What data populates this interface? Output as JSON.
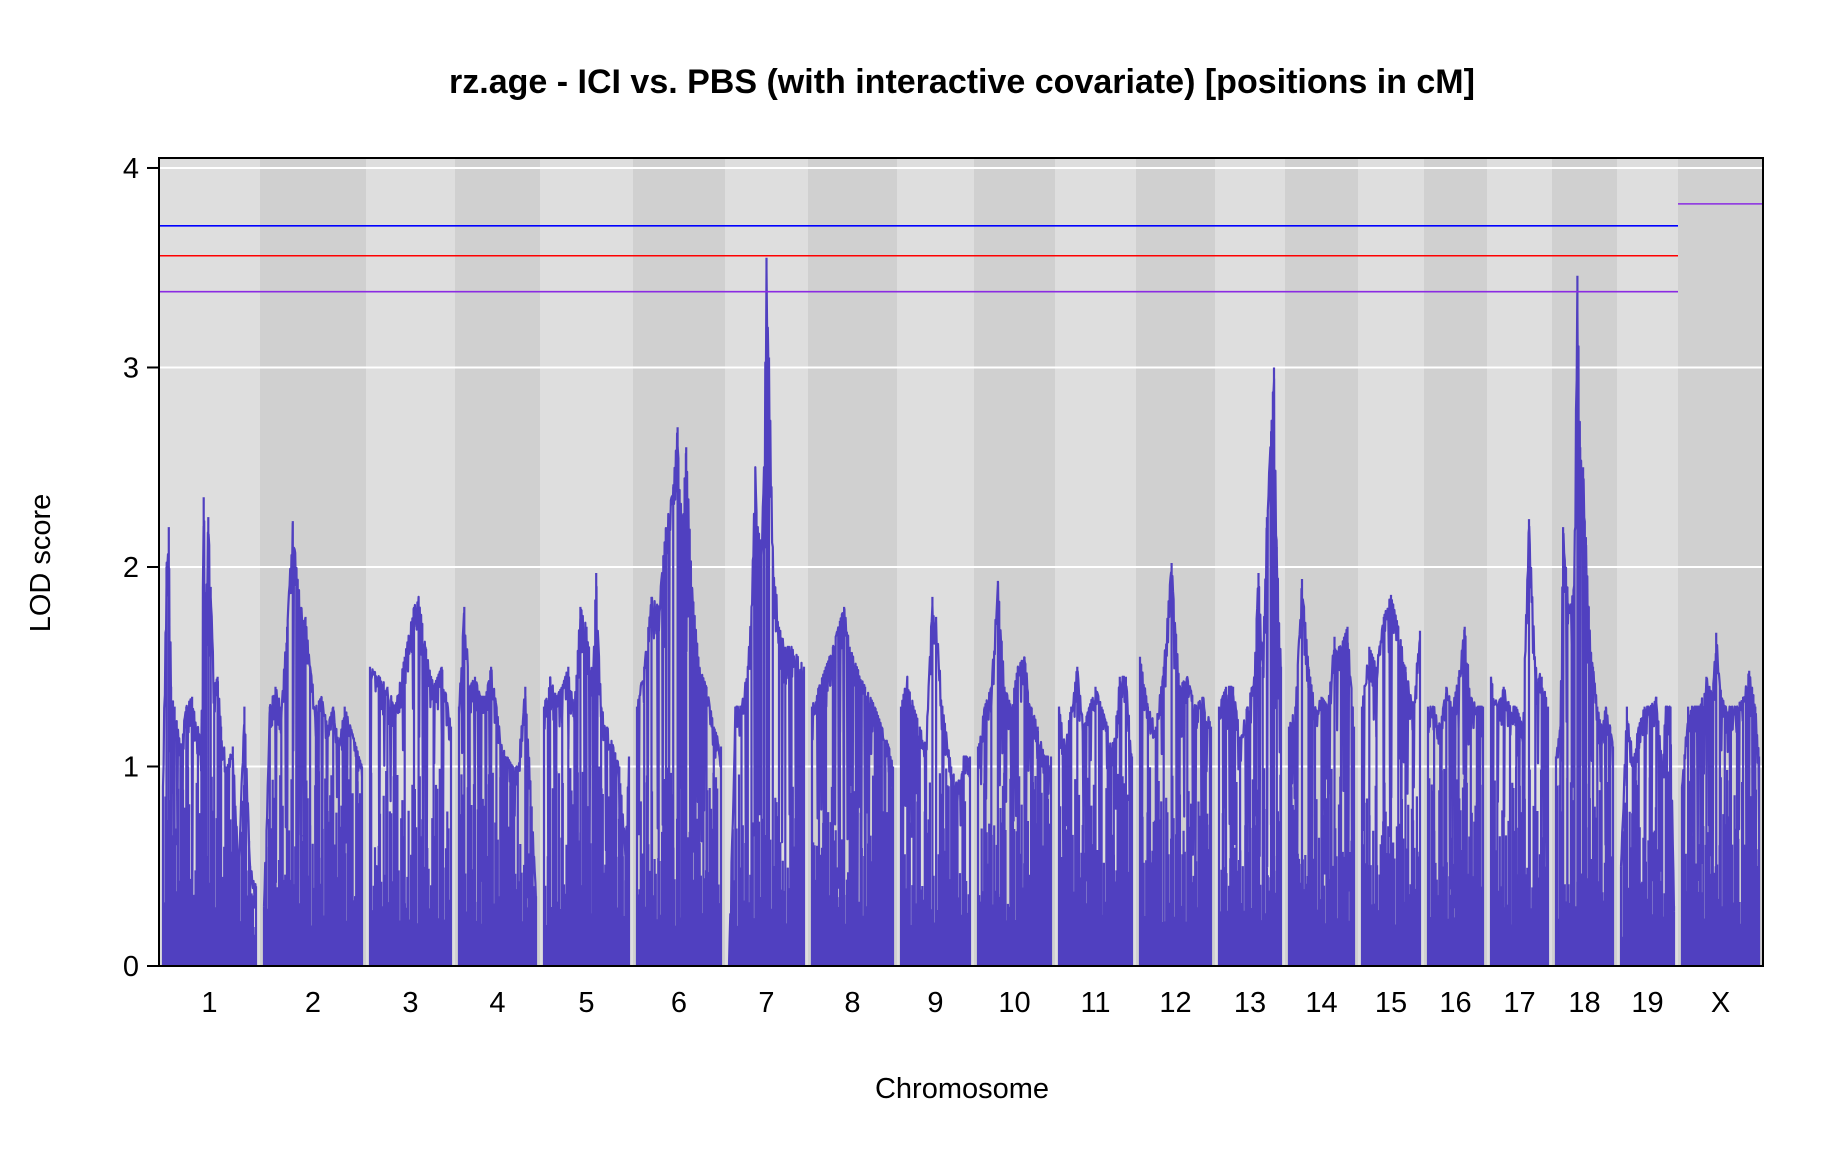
{
  "chart_data": {
    "type": "line",
    "title": "rz.age - ICI vs. PBS (with interactive covariate) [positions in cM]",
    "xlabel": "Chromosome",
    "ylabel": "LOD score",
    "ylim": [
      0,
      4.05
    ],
    "yticks": [
      0,
      1,
      2,
      3,
      4
    ],
    "grid": true,
    "line_color": "#5040c0",
    "band_colors": [
      "#dedede",
      "#d0d0d0"
    ],
    "chromosomes": [
      {
        "name": "1",
        "peaks": [
          [
            0,
            0.9
          ],
          [
            3,
            2.0
          ],
          [
            5,
            2.2
          ],
          [
            7,
            1.4
          ],
          [
            10,
            1.3
          ],
          [
            15,
            1.1
          ],
          [
            20,
            1.3
          ],
          [
            25,
            1.35
          ],
          [
            30,
            1.2
          ],
          [
            33,
            1.1
          ],
          [
            35,
            2.35
          ],
          [
            37,
            1.8
          ],
          [
            39,
            2.25
          ],
          [
            41,
            1.9
          ],
          [
            44,
            1.4
          ],
          [
            47,
            1.45
          ],
          [
            50,
            1.2
          ],
          [
            55,
            1.0
          ],
          [
            60,
            1.1
          ],
          [
            65,
            0.5
          ],
          [
            70,
            1.3
          ],
          [
            75,
            0.5
          ],
          [
            80,
            0.4
          ]
        ]
      },
      {
        "name": "2",
        "peaks": [
          [
            0,
            0.3
          ],
          [
            5,
            1.3
          ],
          [
            10,
            1.4
          ],
          [
            15,
            1.3
          ],
          [
            20,
            1.7
          ],
          [
            25,
            2.23
          ],
          [
            28,
            2.0
          ],
          [
            32,
            1.8
          ],
          [
            36,
            1.75
          ],
          [
            40,
            1.5
          ],
          [
            45,
            1.3
          ],
          [
            50,
            1.35
          ],
          [
            55,
            1.2
          ],
          [
            60,
            1.3
          ],
          [
            65,
            1.1
          ],
          [
            70,
            1.3
          ],
          [
            75,
            1.2
          ],
          [
            80,
            1.1
          ],
          [
            85,
            1.0
          ]
        ]
      },
      {
        "name": "3",
        "peaks": [
          [
            0,
            1.5
          ],
          [
            8,
            1.45
          ],
          [
            15,
            1.4
          ],
          [
            22,
            1.3
          ],
          [
            30,
            1.55
          ],
          [
            38,
            1.8
          ],
          [
            42,
            1.85
          ],
          [
            48,
            1.6
          ],
          [
            55,
            1.4
          ],
          [
            62,
            1.5
          ],
          [
            70,
            1.2
          ]
        ]
      },
      {
        "name": "4",
        "peaks": [
          [
            0,
            1.3
          ],
          [
            5,
            1.8
          ],
          [
            10,
            1.4
          ],
          [
            15,
            1.45
          ],
          [
            20,
            1.35
          ],
          [
            25,
            1.35
          ],
          [
            30,
            1.5
          ],
          [
            35,
            1.3
          ],
          [
            40,
            1.1
          ],
          [
            45,
            1.05
          ],
          [
            50,
            1.0
          ],
          [
            55,
            1.0
          ],
          [
            62,
            1.4
          ],
          [
            68,
            0.8
          ],
          [
            72,
            0.35
          ]
        ]
      },
      {
        "name": "5",
        "peaks": [
          [
            0,
            1.3
          ],
          [
            5,
            1.45
          ],
          [
            10,
            1.35
          ],
          [
            15,
            1.4
          ],
          [
            20,
            1.5
          ],
          [
            25,
            1.3
          ],
          [
            30,
            1.8
          ],
          [
            35,
            1.7
          ],
          [
            40,
            1.45
          ],
          [
            43,
            1.97
          ],
          [
            47,
            1.3
          ],
          [
            52,
            1.2
          ],
          [
            57,
            1.1
          ],
          [
            62,
            1.0
          ],
          [
            67,
            0.6
          ],
          [
            70,
            1.05
          ]
        ]
      },
      {
        "name": "6",
        "peaks": [
          [
            0,
            1.3
          ],
          [
            5,
            1.5
          ],
          [
            10,
            1.85
          ],
          [
            15,
            1.8
          ],
          [
            20,
            2.2
          ],
          [
            25,
            2.4
          ],
          [
            28,
            2.7
          ],
          [
            31,
            2.2
          ],
          [
            34,
            2.6
          ],
          [
            38,
            1.9
          ],
          [
            43,
            1.5
          ],
          [
            48,
            1.4
          ],
          [
            53,
            1.2
          ],
          [
            58,
            1.1
          ]
        ]
      },
      {
        "name": "7",
        "peaks": [
          [
            0,
            0.0
          ],
          [
            5,
            1.3
          ],
          [
            10,
            1.3
          ],
          [
            15,
            1.5
          ],
          [
            18,
            1.8
          ],
          [
            21,
            2.5
          ],
          [
            23,
            2.2
          ],
          [
            26,
            2.1
          ],
          [
            28,
            2.5
          ],
          [
            30,
            3.55
          ],
          [
            31,
            3.2
          ],
          [
            32,
            3.05
          ],
          [
            35,
            2.1
          ],
          [
            40,
            1.7
          ],
          [
            45,
            1.6
          ],
          [
            50,
            1.6
          ],
          [
            55,
            1.55
          ],
          [
            60,
            1.5
          ]
        ]
      },
      {
        "name": "8",
        "peaks": [
          [
            0,
            1.3
          ],
          [
            5,
            1.4
          ],
          [
            10,
            1.5
          ],
          [
            15,
            1.6
          ],
          [
            20,
            1.73
          ],
          [
            23,
            1.8
          ],
          [
            27,
            1.6
          ],
          [
            32,
            1.5
          ],
          [
            38,
            1.4
          ],
          [
            45,
            1.3
          ],
          [
            50,
            1.2
          ],
          [
            55,
            1.1
          ],
          [
            58,
            1.0
          ]
        ]
      },
      {
        "name": "9",
        "peaks": [
          [
            0,
            1.3
          ],
          [
            5,
            1.45
          ],
          [
            10,
            1.3
          ],
          [
            15,
            1.2
          ],
          [
            20,
            1.1
          ],
          [
            25,
            1.85
          ],
          [
            28,
            1.75
          ],
          [
            33,
            1.3
          ],
          [
            40,
            1.0
          ],
          [
            45,
            0.9
          ],
          [
            50,
            1.05
          ],
          [
            55,
            1.05
          ]
        ]
      },
      {
        "name": "10",
        "peaks": [
          [
            0,
            1.1
          ],
          [
            5,
            1.3
          ],
          [
            10,
            1.4
          ],
          [
            15,
            1.93
          ],
          [
            20,
            1.4
          ],
          [
            25,
            1.3
          ],
          [
            30,
            1.5
          ],
          [
            35,
            1.55
          ],
          [
            40,
            1.3
          ],
          [
            45,
            1.2
          ],
          [
            50,
            1.05
          ],
          [
            55,
            1.05
          ]
        ]
      },
      {
        "name": "11",
        "peaks": [
          [
            0,
            1.3
          ],
          [
            5,
            1.1
          ],
          [
            10,
            1.3
          ],
          [
            15,
            1.5
          ],
          [
            20,
            1.2
          ],
          [
            25,
            1.3
          ],
          [
            30,
            1.4
          ],
          [
            35,
            1.3
          ],
          [
            40,
            1.2
          ],
          [
            45,
            1.1
          ],
          [
            50,
            1.45
          ],
          [
            55,
            1.45
          ],
          [
            60,
            1.05
          ]
        ]
      },
      {
        "name": "12",
        "peaks": [
          [
            0,
            1.55
          ],
          [
            5,
            1.3
          ],
          [
            10,
            1.2
          ],
          [
            15,
            1.5
          ],
          [
            20,
            2.02
          ],
          [
            25,
            1.4
          ],
          [
            30,
            1.45
          ],
          [
            35,
            1.3
          ],
          [
            40,
            1.35
          ],
          [
            45,
            1.2
          ]
        ]
      },
      {
        "name": "13",
        "peaks": [
          [
            0,
            1.3
          ],
          [
            5,
            1.4
          ],
          [
            10,
            1.4
          ],
          [
            15,
            1.15
          ],
          [
            20,
            1.3
          ],
          [
            25,
            1.45
          ],
          [
            28,
            1.97
          ],
          [
            31,
            1.5
          ],
          [
            34,
            2.25
          ],
          [
            37,
            2.68
          ],
          [
            39,
            3.0
          ],
          [
            41,
            2.1
          ],
          [
            44,
            1.5
          ]
        ]
      },
      {
        "name": "14",
        "peaks": [
          [
            0,
            1.2
          ],
          [
            5,
            1.3
          ],
          [
            10,
            1.94
          ],
          [
            15,
            1.5
          ],
          [
            20,
            1.3
          ],
          [
            25,
            1.35
          ],
          [
            30,
            1.3
          ],
          [
            35,
            1.65
          ],
          [
            40,
            1.6
          ],
          [
            45,
            1.7
          ],
          [
            50,
            1.2
          ]
        ]
      },
      {
        "name": "15",
        "peaks": [
          [
            0,
            1.3
          ],
          [
            5,
            1.6
          ],
          [
            10,
            1.5
          ],
          [
            15,
            1.75
          ],
          [
            20,
            1.86
          ],
          [
            25,
            1.7
          ],
          [
            30,
            1.5
          ],
          [
            35,
            1.3
          ],
          [
            40,
            1.68
          ]
        ]
      },
      {
        "name": "16",
        "peaks": [
          [
            0,
            1.3
          ],
          [
            5,
            1.3
          ],
          [
            10,
            1.2
          ],
          [
            15,
            1.4
          ],
          [
            20,
            1.3
          ],
          [
            25,
            1.45
          ],
          [
            30,
            1.7
          ],
          [
            35,
            1.35
          ],
          [
            40,
            1.3
          ],
          [
            45,
            1.3
          ]
        ]
      },
      {
        "name": "17",
        "peaks": [
          [
            0,
            1.45
          ],
          [
            5,
            1.3
          ],
          [
            10,
            1.4
          ],
          [
            15,
            1.3
          ],
          [
            20,
            1.3
          ],
          [
            25,
            1.2
          ],
          [
            30,
            2.24
          ],
          [
            35,
            1.5
          ],
          [
            40,
            1.45
          ],
          [
            45,
            1.3
          ]
        ]
      },
      {
        "name": "18",
        "peaks": [
          [
            0,
            1.05
          ],
          [
            3,
            1.2
          ],
          [
            5,
            2.2
          ],
          [
            8,
            1.9
          ],
          [
            11,
            1.8
          ],
          [
            13,
            2.05
          ],
          [
            15,
            3.46
          ],
          [
            17,
            2.6
          ],
          [
            19,
            2.5
          ],
          [
            21,
            2.15
          ],
          [
            23,
            1.8
          ],
          [
            26,
            1.5
          ],
          [
            29,
            1.3
          ],
          [
            32,
            1.2
          ],
          [
            35,
            1.3
          ],
          [
            38,
            1.2
          ],
          [
            40,
            1.1
          ]
        ]
      },
      {
        "name": "19",
        "peaks": [
          [
            0,
            0.5
          ],
          [
            5,
            1.3
          ],
          [
            10,
            1.05
          ],
          [
            15,
            1.2
          ],
          [
            20,
            1.3
          ],
          [
            25,
            1.3
          ],
          [
            30,
            1.35
          ],
          [
            35,
            1.0
          ],
          [
            38,
            1.3
          ],
          [
            42,
            1.3
          ],
          [
            45,
            0.3
          ]
        ]
      },
      {
        "name": "X",
        "peaks": [
          [
            0,
            0.9
          ],
          [
            5,
            1.3
          ],
          [
            10,
            1.3
          ],
          [
            15,
            1.3
          ],
          [
            20,
            1.45
          ],
          [
            25,
            1.35
          ],
          [
            28,
            1.67
          ],
          [
            31,
            1.4
          ],
          [
            35,
            1.3
          ],
          [
            40,
            1.3
          ],
          [
            45,
            1.3
          ],
          [
            50,
            1.35
          ],
          [
            55,
            1.48
          ],
          [
            60,
            1.3
          ],
          [
            63,
            1.05
          ]
        ]
      }
    ],
    "thresholds": {
      "autosome": [
        {
          "value": 3.71,
          "color": "#0000ff"
        },
        {
          "value": 3.56,
          "color": "#ff0000"
        },
        {
          "value": 3.38,
          "color": "#8a2be2"
        }
      ],
      "x_chromosome": [
        {
          "value": 3.82,
          "color": "#8a2be2"
        }
      ]
    }
  }
}
